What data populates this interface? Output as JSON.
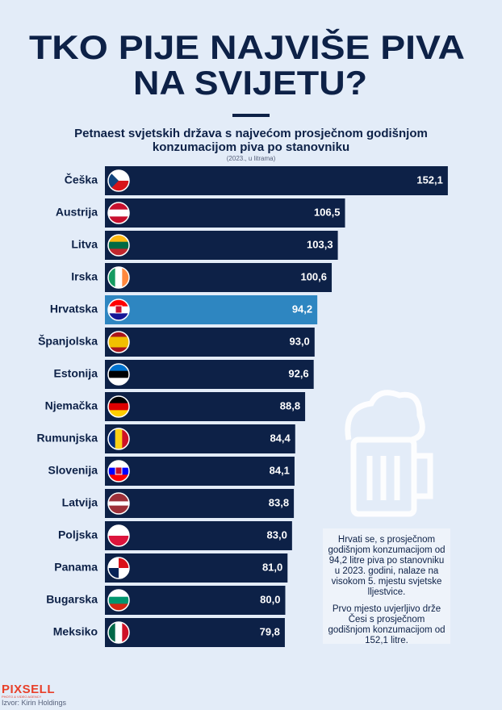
{
  "chart_data": {
    "type": "hbar",
    "title": [
      "TKO PIJE NAJVIŠE PIVA",
      "NA SVIJETU?"
    ],
    "subtitle": [
      "Petnaest svjetskih država s najvećom prosječnom godišnjom",
      "konzumacijom piva po stanovniku"
    ],
    "unit_note": "(2023., u litrama)",
    "categories": [
      "Češka",
      "Austrija",
      "Litva",
      "Irska",
      "Hrvatska",
      "Španjolska",
      "Estonija",
      "Njemačka",
      "Rumunjska",
      "Slovenija",
      "Latvija",
      "Poljska",
      "Panama",
      "Bugarska",
      "Meksiko"
    ],
    "values": [
      152.1,
      106.5,
      103.3,
      100.6,
      94.2,
      93.0,
      92.6,
      88.8,
      84.4,
      84.1,
      83.8,
      83.0,
      81.0,
      80.0,
      79.8
    ],
    "value_labels": [
      "152,1",
      "106,5",
      "103,3",
      "100,6",
      "94,2",
      "93,0",
      "92,6",
      "88,8",
      "84,4",
      "84,1",
      "83,8",
      "83,0",
      "81,0",
      "80,0",
      "79,8"
    ],
    "colors": [
      "#0d2147",
      "#0d2147",
      "#0d2147",
      "#0d2147",
      "#2e86c1",
      "#0d2147",
      "#0d2147",
      "#0d2147",
      "#0d2147",
      "#0d2147",
      "#0d2147",
      "#0d2147",
      "#0d2147",
      "#0d2147",
      "#0d2147"
    ],
    "xlim": [
      0,
      155
    ],
    "annotations": [
      "Hrvati se, s prosječnom godišnjom konzumacijom od 94,2 litre piva po stanovniku u 2023. godini, nalaze na visokom 5. mjestu svjetske lljestvice.",
      "Prvo mjesto uvjerljivo drže Česi s prosječnom godišnjom konzumacijom od 152,1 litre."
    ],
    "logo": "PIXSELL",
    "logo_tagline": "PHOTO & VIDEO AGENCY",
    "source": "Izvor: Kirin Holdings"
  }
}
